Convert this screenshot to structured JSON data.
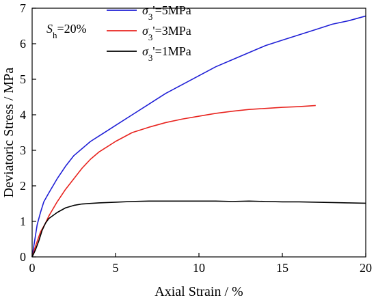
{
  "chart_data": {
    "type": "line",
    "xlabel": "Axial Strain / %",
    "ylabel": "Deviatoric Stress / MPa",
    "xlim": [
      0,
      20
    ],
    "ylim": [
      0,
      7
    ],
    "xticks": [
      0,
      5,
      10,
      15,
      20
    ],
    "yticks": [
      0,
      1,
      2,
      3,
      4,
      5,
      6,
      7
    ],
    "grid": false,
    "legend_position": "top",
    "annotation": {
      "symbol": "S",
      "subscript": "h",
      "text": "=20%"
    },
    "series": [
      {
        "name": {
          "symbol": "σ",
          "subscript": "3",
          "suffix": "'=5MPa"
        },
        "color": "#1f1fd6",
        "x": [
          0,
          0.1,
          0.2,
          0.3,
          0.5,
          0.7,
          1.0,
          1.5,
          2.0,
          2.5,
          3.0,
          3.5,
          4.0,
          4.5,
          5.0,
          6.0,
          7.0,
          8.0,
          9.0,
          10.0,
          11.0,
          12.0,
          13.0,
          14.0,
          15.0,
          16.0,
          17.0,
          18.0,
          19.0,
          20.0
        ],
        "y": [
          0,
          0.3,
          0.6,
          0.9,
          1.25,
          1.55,
          1.8,
          2.2,
          2.55,
          2.85,
          3.05,
          3.25,
          3.4,
          3.55,
          3.7,
          4.0,
          4.3,
          4.6,
          4.85,
          5.1,
          5.35,
          5.55,
          5.75,
          5.95,
          6.1,
          6.25,
          6.4,
          6.55,
          6.65,
          6.78
        ]
      },
      {
        "name": {
          "symbol": "σ",
          "subscript": "3",
          "suffix": "'=3MPa"
        },
        "color": "#e8231e",
        "x": [
          0,
          0.2,
          0.5,
          0.8,
          1.0,
          1.5,
          2.0,
          2.5,
          3.0,
          3.5,
          4.0,
          4.5,
          5.0,
          6.0,
          7.0,
          8.0,
          9.0,
          10.0,
          11.0,
          12.0,
          13.0,
          14.0,
          15.0,
          16.0,
          17.0
        ],
        "y": [
          0,
          0.3,
          0.7,
          0.95,
          1.15,
          1.55,
          1.9,
          2.2,
          2.5,
          2.75,
          2.95,
          3.1,
          3.25,
          3.5,
          3.65,
          3.78,
          3.88,
          3.96,
          4.04,
          4.1,
          4.15,
          4.18,
          4.21,
          4.23,
          4.26
        ]
      },
      {
        "name": {
          "symbol": "σ",
          "subscript": "3",
          "suffix": "'=1MPa"
        },
        "color": "#000000",
        "x": [
          0,
          0.2,
          0.4,
          0.6,
          0.8,
          1.0,
          1.5,
          2.0,
          2.5,
          3.0,
          4.0,
          5.0,
          6.0,
          7.0,
          8.0,
          9.0,
          10.0,
          11.0,
          12.0,
          13.0,
          14.0,
          15.0,
          16.0,
          17.0,
          18.0,
          19.0,
          20.0
        ],
        "y": [
          0,
          0.2,
          0.45,
          0.75,
          0.95,
          1.08,
          1.25,
          1.38,
          1.45,
          1.49,
          1.52,
          1.54,
          1.56,
          1.57,
          1.57,
          1.57,
          1.57,
          1.57,
          1.56,
          1.57,
          1.56,
          1.55,
          1.55,
          1.54,
          1.53,
          1.52,
          1.51
        ]
      }
    ]
  }
}
